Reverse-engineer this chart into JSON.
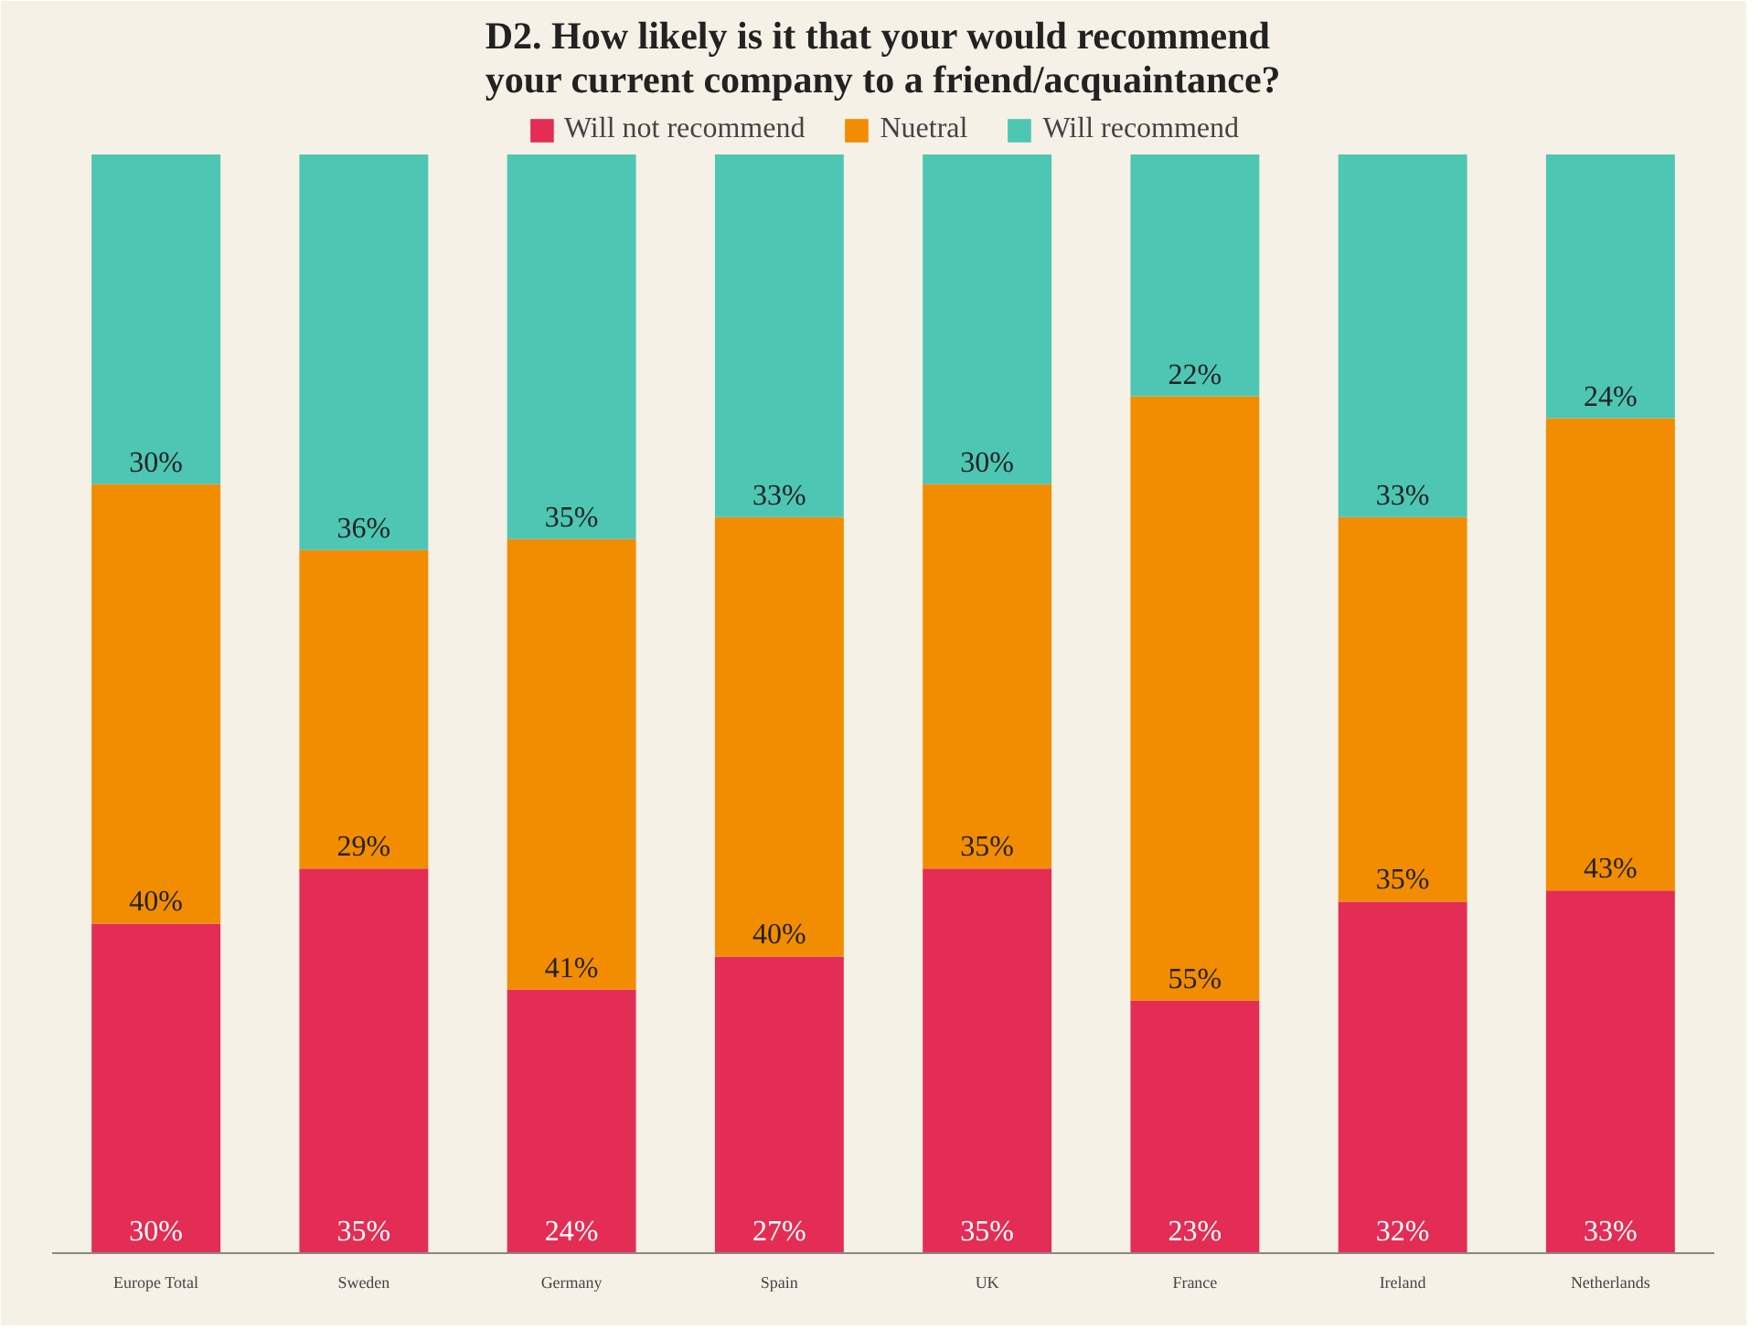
{
  "chart_data": {
    "type": "bar",
    "stacked": true,
    "title": "D2. How likely is it that your would recommend\nyour current company to a friend/acquaintance?",
    "categories": [
      "Europe Total",
      "Sweden",
      "Germany",
      "Spain",
      "UK",
      "France",
      "Ireland",
      "Netherlands"
    ],
    "series": [
      {
        "name": "Will not recommend",
        "color": "#e32d54",
        "values": [
          30,
          35,
          24,
          27,
          35,
          23,
          32,
          33
        ],
        "value_labels": [
          "30%",
          "35%",
          "24%",
          "27%",
          "35%",
          "23%",
          "32%",
          "33%"
        ]
      },
      {
        "name": "Nuetral",
        "color": "#f28c00",
        "values": [
          40,
          29,
          41,
          40,
          35,
          55,
          35,
          43
        ],
        "value_labels": [
          "40%",
          "29%",
          "41%",
          "40%",
          "35%",
          "55%",
          "35%",
          "43%"
        ]
      },
      {
        "name": "Will recommend",
        "color": "#4dc6b4",
        "values": [
          30,
          36,
          35,
          33,
          30,
          22,
          33,
          24
        ],
        "value_labels": [
          "30%",
          "36%",
          "35%",
          "33%",
          "30%",
          "22%",
          "33%",
          "24%"
        ]
      }
    ],
    "legend": "top",
    "grid": false,
    "tick_labels": "x"
  }
}
